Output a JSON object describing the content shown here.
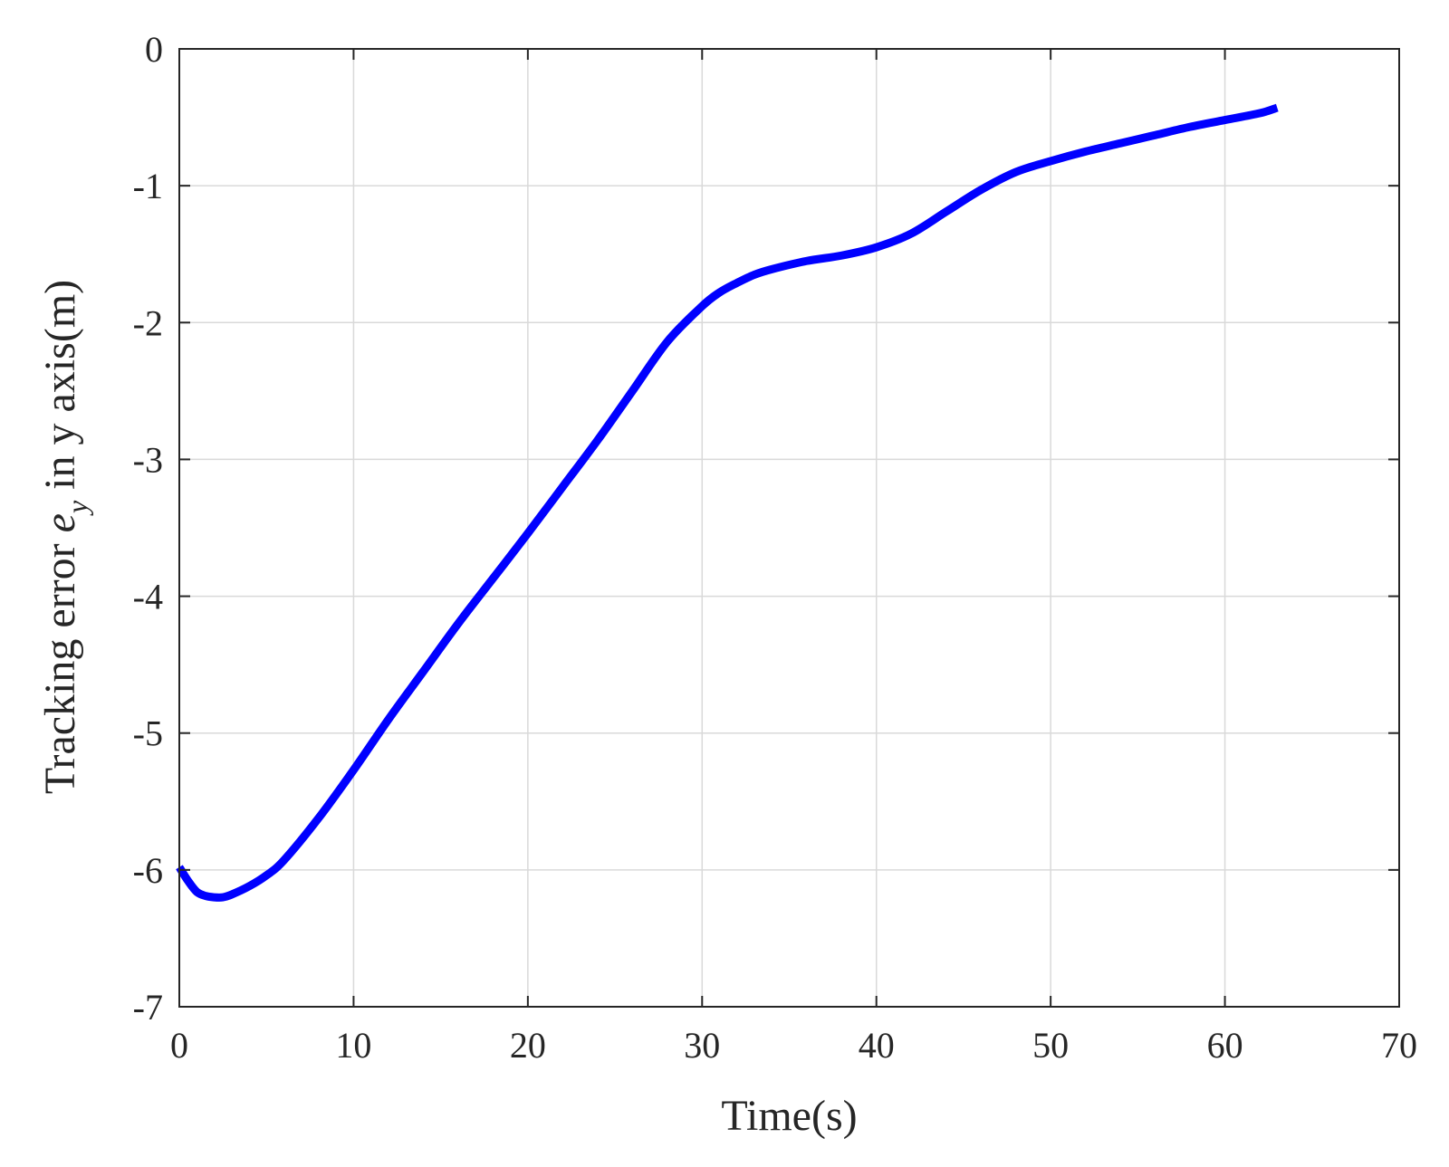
{
  "chart_data": {
    "type": "line",
    "title": "",
    "xlabel": "Time(s)",
    "ylabel": {
      "prefix": "Tracking error ",
      "symbol": "e",
      "subscript": "y",
      "suffix": " in y axis(m)"
    },
    "xlim": [
      0,
      70
    ],
    "ylim": [
      -7,
      0
    ],
    "xticks": [
      0,
      10,
      20,
      30,
      40,
      50,
      60,
      70
    ],
    "yticks": [
      0,
      -1,
      -2,
      -3,
      -4,
      -5,
      -6,
      -7
    ],
    "grid": true,
    "legend": "none",
    "series": [
      {
        "color": "#0000ff",
        "x": [
          0,
          0.5,
          1,
          1.5,
          2,
          2.5,
          3,
          4,
          5,
          6,
          8,
          10,
          12,
          14,
          16,
          18,
          20,
          22,
          24,
          26,
          28,
          30,
          31,
          32,
          33,
          34,
          36,
          38,
          40,
          42,
          44,
          46,
          48,
          50,
          52,
          54,
          56,
          58,
          60,
          62,
          63
        ],
        "y": [
          -5.98,
          -6.08,
          -6.16,
          -6.19,
          -6.2,
          -6.2,
          -6.18,
          -6.12,
          -6.04,
          -5.93,
          -5.62,
          -5.27,
          -4.9,
          -4.55,
          -4.2,
          -3.87,
          -3.54,
          -3.2,
          -2.86,
          -2.5,
          -2.14,
          -1.88,
          -1.78,
          -1.71,
          -1.65,
          -1.61,
          -1.55,
          -1.51,
          -1.45,
          -1.35,
          -1.19,
          -1.03,
          -0.9,
          -0.82,
          -0.75,
          -0.69,
          -0.63,
          -0.57,
          -0.52,
          -0.47,
          -0.43
        ]
      }
    ]
  }
}
